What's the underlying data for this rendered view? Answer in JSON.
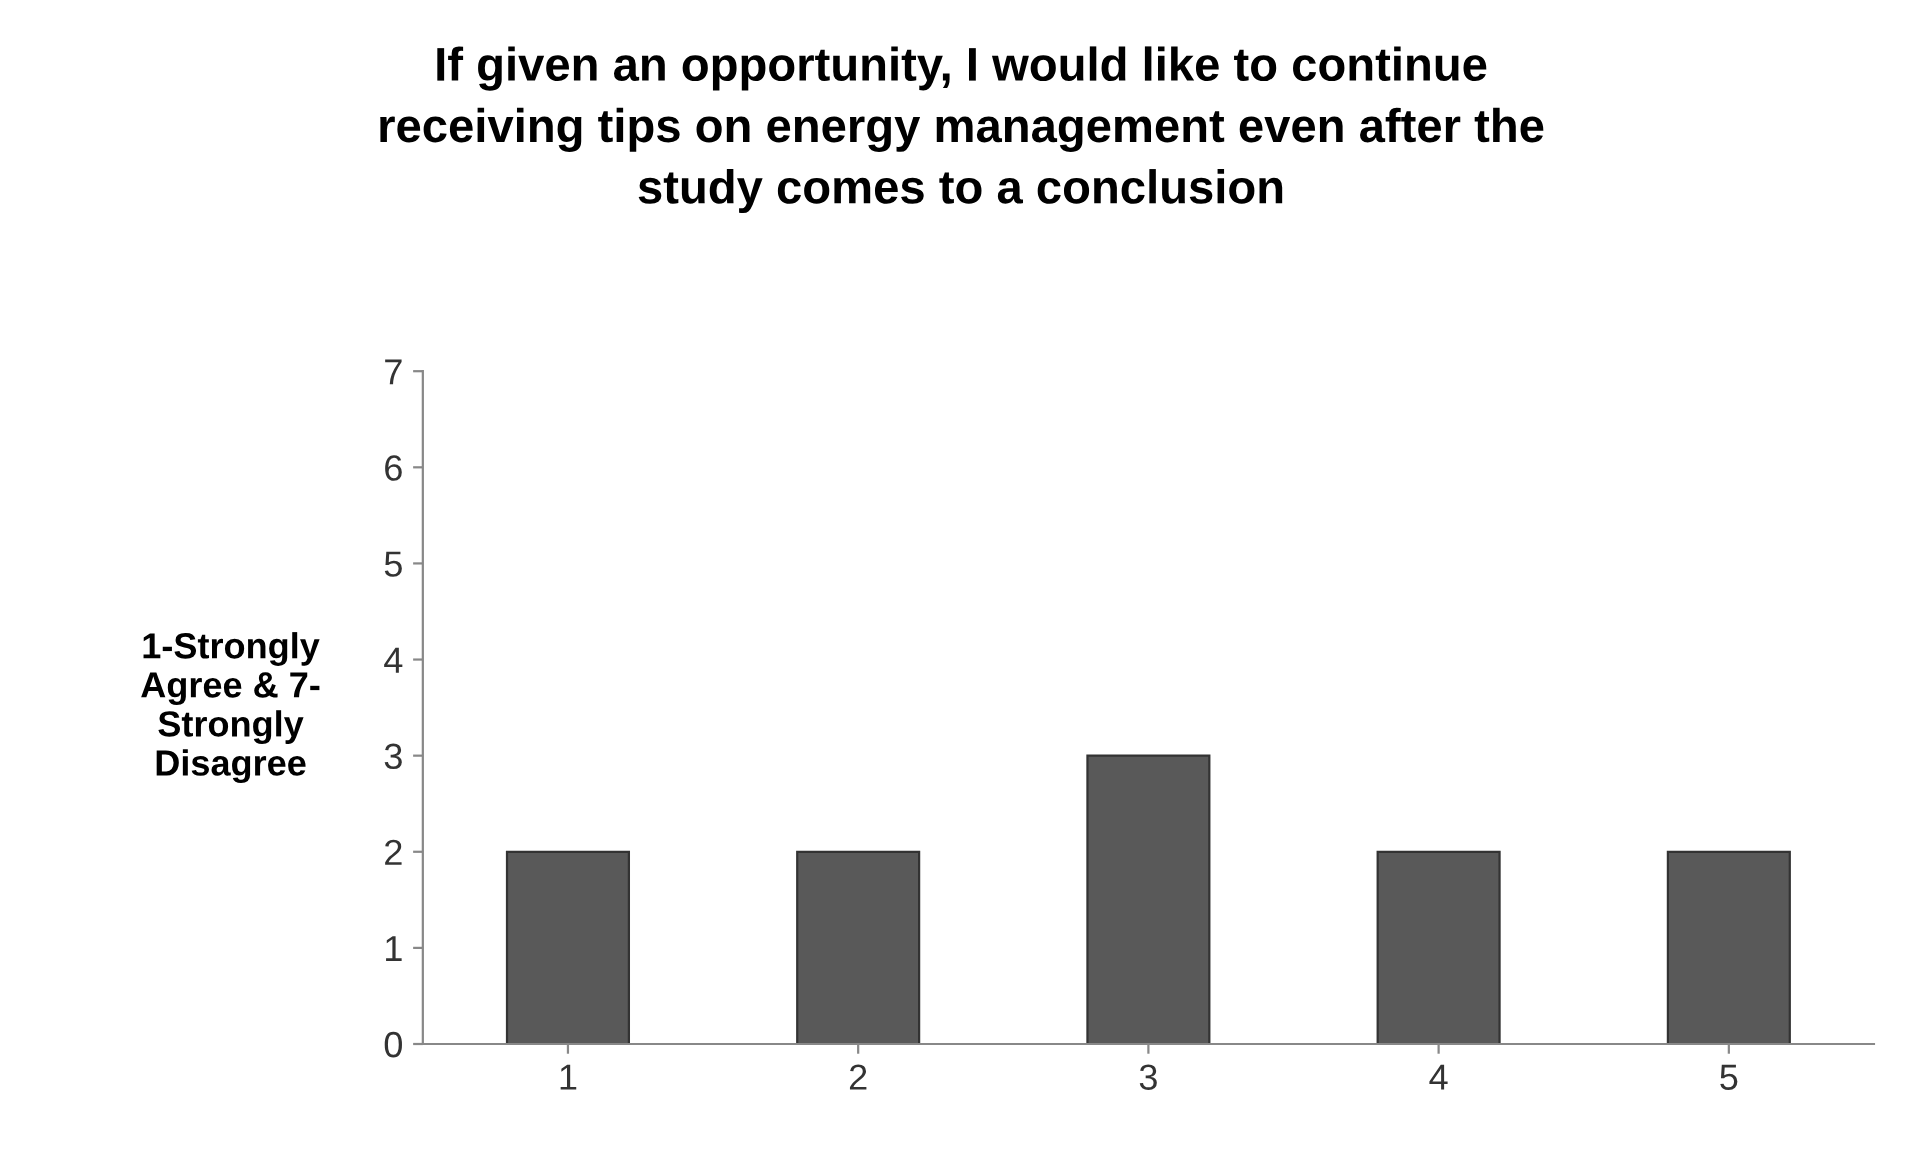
{
  "chart_data": {
    "type": "bar",
    "title": "If given an opportunity, I would like to continue\nreceiving tips on energy management even after the\nstudy comes to a conclusion",
    "ylabel": "1-Strongly\nAgree & 7-\nStrongly\nDisagree",
    "categories": [
      "1",
      "2",
      "3",
      "4",
      "5"
    ],
    "values": [
      2,
      2,
      3,
      2,
      2
    ],
    "color": "#595959",
    "ylim": [
      0,
      7
    ],
    "yticks": [
      0,
      1,
      2,
      3,
      4,
      5,
      6,
      7
    ],
    "grid": false
  }
}
